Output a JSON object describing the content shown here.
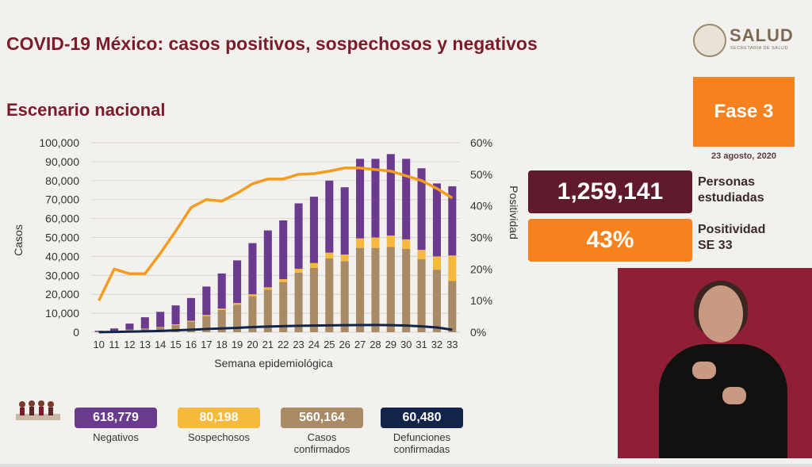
{
  "header": {
    "title": "COVID-19 México: casos positivos, sospechosos y negativos",
    "subtitle": "Escenario nacional",
    "logo_text": "SALUD",
    "logo_sub": "SECRETARÍA DE SALUD"
  },
  "phase": {
    "label": "Fase 3",
    "date": "23 agosto, 2020"
  },
  "stats": {
    "people_value": "1,259,141",
    "people_label_1": "Personas",
    "people_label_2": "estudiadas",
    "positivity_value": "43%",
    "positivity_label_1": "Positividad",
    "positivity_label_2": "SE 33"
  },
  "legend": [
    {
      "value": "618,779",
      "label": "Negativos",
      "label2": "",
      "color": "#6a3a8e"
    },
    {
      "value": "80,198",
      "label": "Sospechosos",
      "label2": "",
      "color": "#f6b93b"
    },
    {
      "value": "560,164",
      "label": "Casos",
      "label2": "confirmados",
      "color": "#a88a65"
    },
    {
      "value": "60,480",
      "label": "Defunciones",
      "label2": "confirmadas",
      "color": "#12244a"
    }
  ],
  "chart_data": {
    "type": "bar",
    "stacked": true,
    "xlabel": "Semana epidemiológica",
    "ylabel": "Casos",
    "y2label": "Positividad",
    "ylim": [
      0,
      100000
    ],
    "y2lim": [
      0,
      60
    ],
    "yticks": [
      "0",
      "10,000",
      "20,000",
      "30,000",
      "40,000",
      "50,000",
      "60,000",
      "70,000",
      "80,000",
      "90,000",
      "100,000"
    ],
    "y2ticks": [
      "0%",
      "10%",
      "20%",
      "30%",
      "40%",
      "50%",
      "60%"
    ],
    "categories": [
      "10",
      "11",
      "12",
      "13",
      "14",
      "15",
      "16",
      "17",
      "18",
      "19",
      "20",
      "21",
      "22",
      "23",
      "24",
      "25",
      "26",
      "27",
      "28",
      "29",
      "30",
      "31",
      "32",
      "33"
    ],
    "series": [
      {
        "name": "Casos confirmados",
        "color": "#a88a65",
        "values": [
          100,
          600,
          1200,
          1700,
          2500,
          3800,
          5600,
          8500,
          11800,
          14500,
          19000,
          22500,
          26500,
          31500,
          34000,
          39000,
          37500,
          44500,
          44500,
          45000,
          44000,
          38500,
          33000,
          27000
        ]
      },
      {
        "name": "Sospechosos",
        "color": "#f6b93b",
        "values": [
          50,
          100,
          150,
          200,
          250,
          350,
          450,
          600,
          700,
          900,
          1000,
          1200,
          1500,
          2000,
          2500,
          3000,
          3500,
          5000,
          5500,
          6000,
          5000,
          5000,
          7000,
          13500
        ]
      },
      {
        "name": "Negativos",
        "color": "#6a3a8e",
        "values": [
          600,
          1300,
          3200,
          6000,
          8000,
          10000,
          12000,
          15000,
          18500,
          22500,
          27000,
          30000,
          31000,
          34500,
          35000,
          38000,
          35500,
          42000,
          41500,
          43000,
          42500,
          43000,
          38500,
          36500
        ]
      }
    ],
    "lines": [
      {
        "name": "Positividad",
        "color": "#f39c1f",
        "axis": "y2",
        "values": [
          10,
          20,
          18.5,
          18.5,
          25,
          32,
          39.5,
          42,
          41.5,
          44,
          47,
          48.5,
          48.5,
          50,
          50.2,
          51,
          52,
          52,
          51.5,
          51,
          49.5,
          48,
          45.5,
          42.5
        ]
      },
      {
        "name": "Defunciones confirmadas",
        "color": "#12244a",
        "axis": "y",
        "values": [
          30,
          150,
          300,
          450,
          700,
          1000,
          1300,
          1700,
          2000,
          2300,
          2700,
          3000,
          3200,
          3400,
          3500,
          3600,
          3700,
          3750,
          3800,
          3700,
          3500,
          3100,
          2500,
          1300
        ]
      }
    ]
  }
}
